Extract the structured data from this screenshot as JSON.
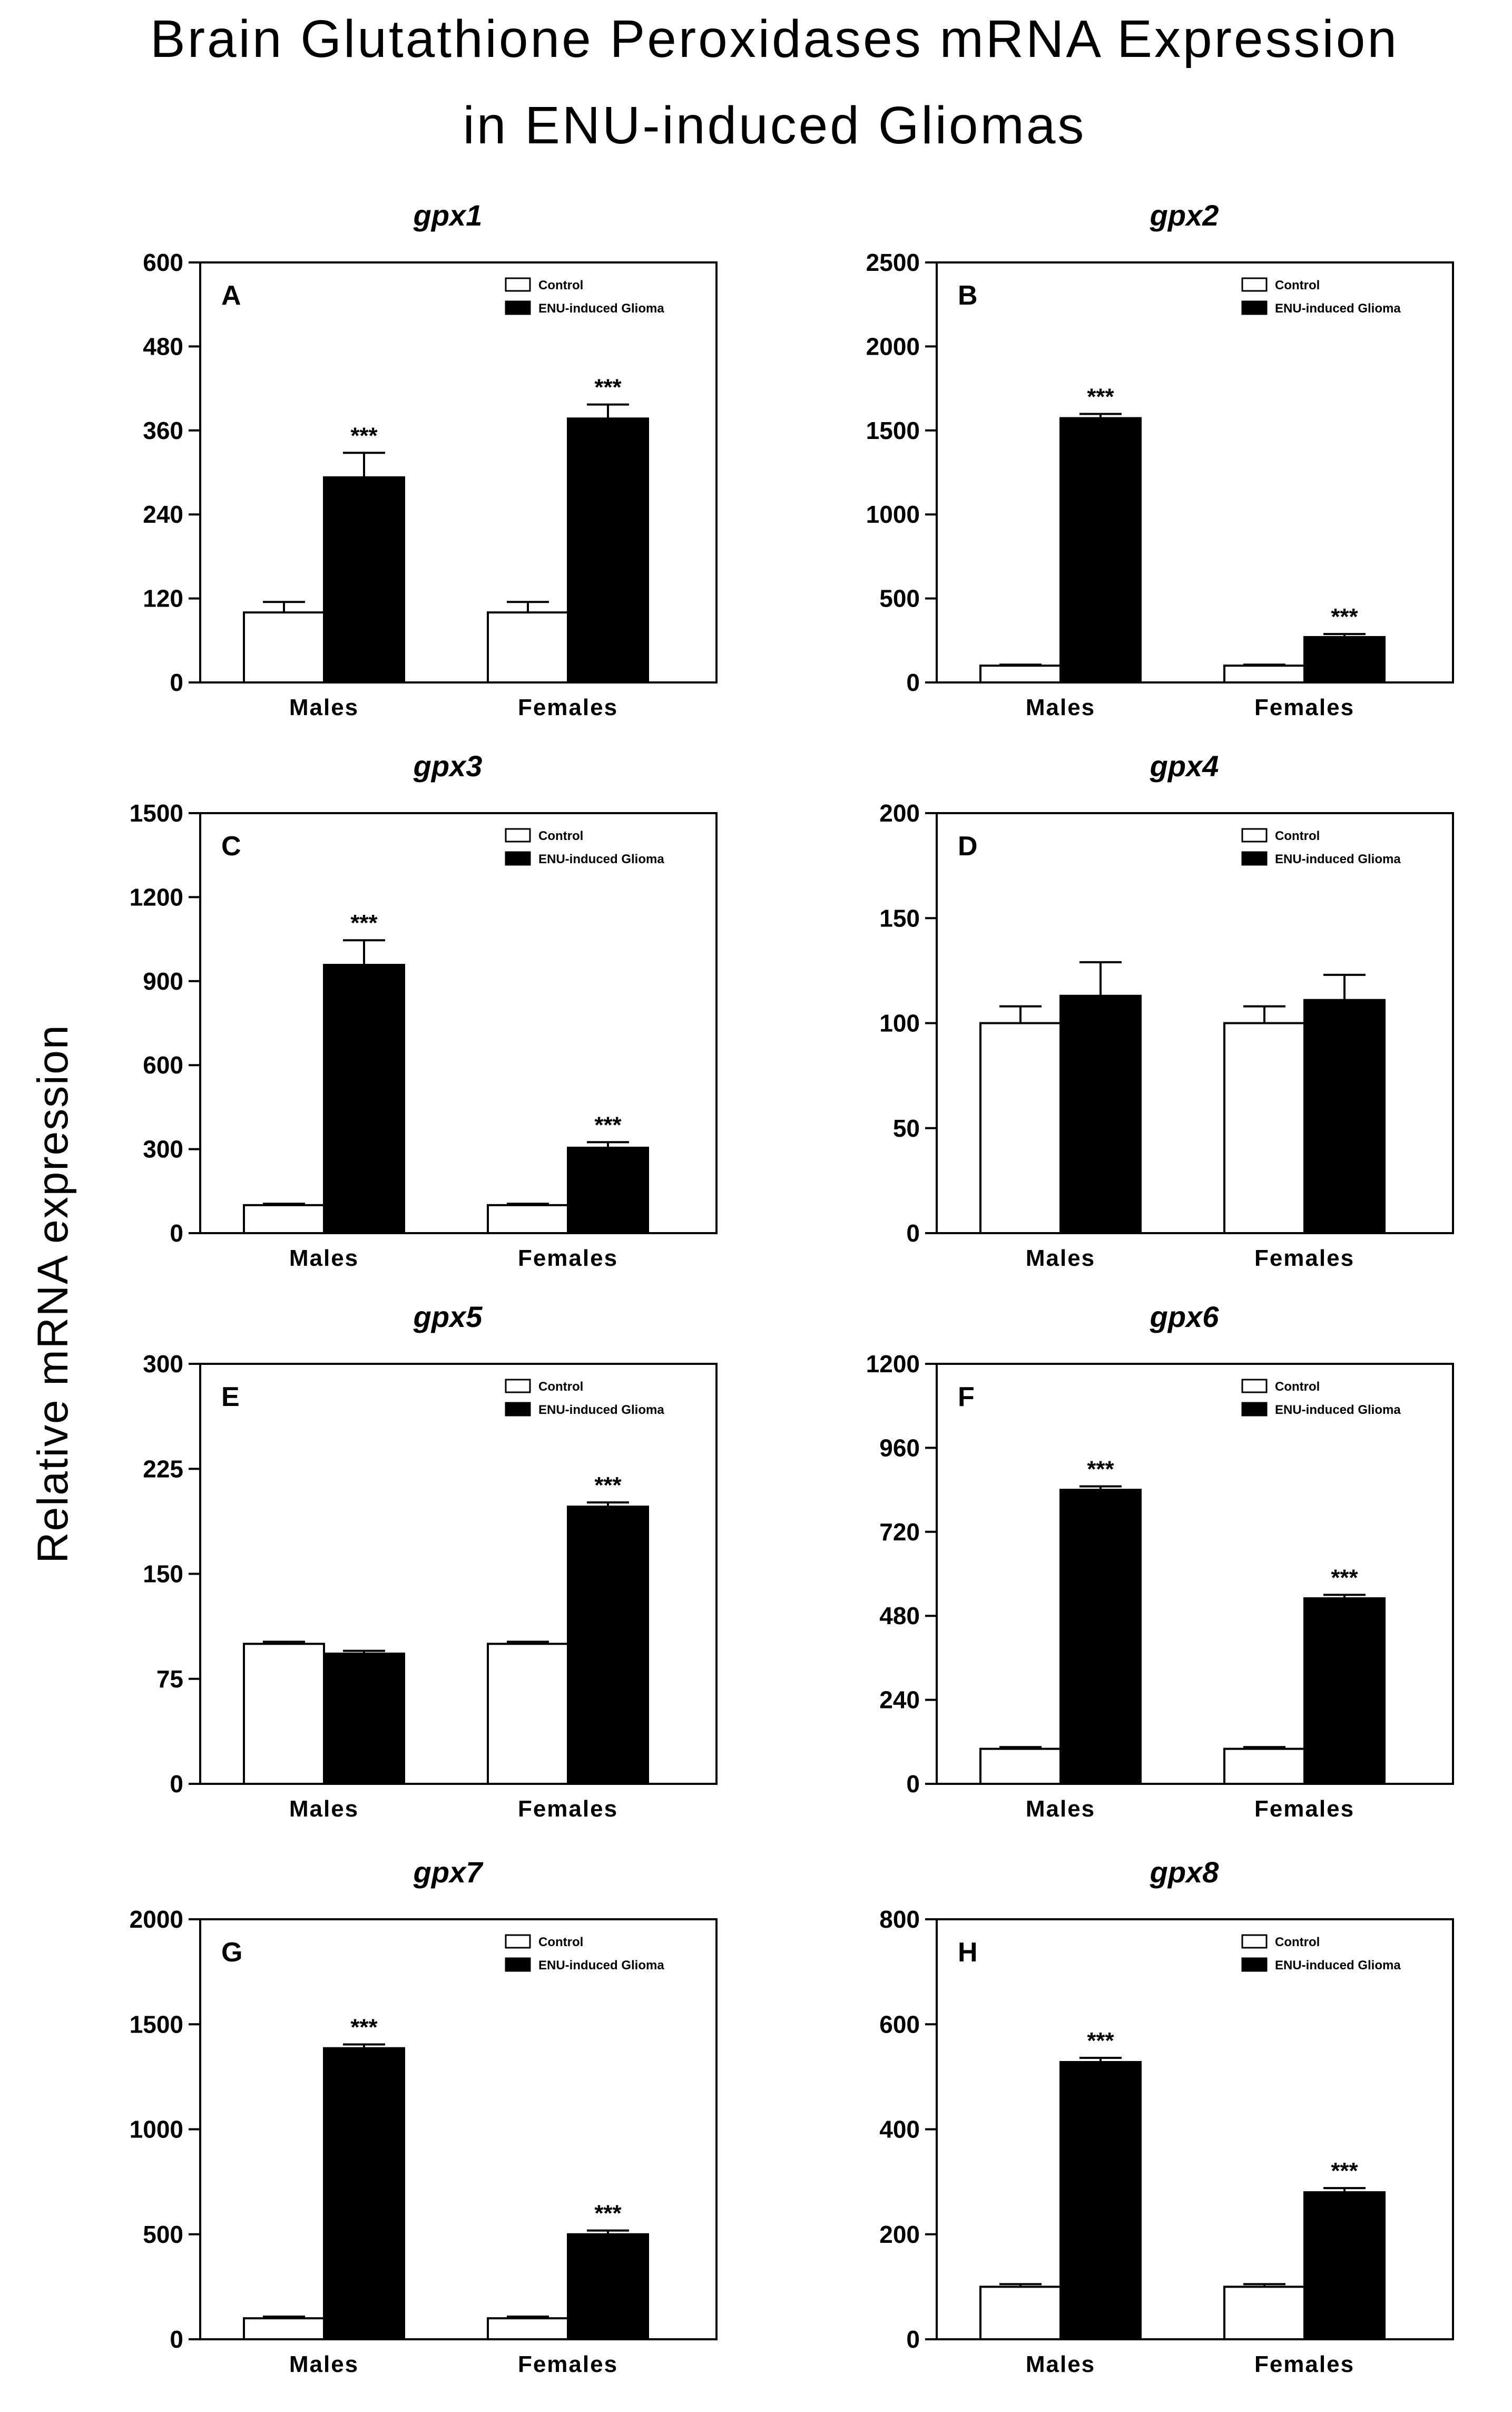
{
  "figure": {
    "title_line1": "Brain Glutathione Peroxidases mRNA Expression",
    "title_line2": "in ENU-induced Gliomas",
    "ylabel": "Relative mRNA expression"
  },
  "chart_data": [
    {
      "type": "bar",
      "panel": "A",
      "title": "gpx1",
      "categories": [
        "Males",
        "Females"
      ],
      "series": [
        {
          "name": "Control",
          "values": [
            100,
            100
          ],
          "errors": [
            15,
            15
          ]
        },
        {
          "name": "ENU-induced Glioma",
          "values": [
            293,
            377
          ],
          "errors": [
            35,
            20
          ]
        }
      ],
      "significance": [
        [
          "",
          ""
        ],
        [
          "***",
          "***"
        ]
      ],
      "ylim": [
        0,
        600
      ],
      "yticks": [
        0,
        120,
        240,
        360,
        480,
        600
      ],
      "ytick_labels": [
        "0",
        "120",
        "240",
        "360",
        "480",
        "600"
      ],
      "legend": "top-right"
    },
    {
      "type": "bar",
      "panel": "B",
      "title": "gpx2",
      "categories": [
        "Males",
        "Females"
      ],
      "series": [
        {
          "name": "Control",
          "values": [
            100,
            100
          ],
          "errors": [
            6,
            6
          ]
        },
        {
          "name": "ENU-induced Glioma",
          "values": [
            1573,
            270
          ],
          "errors": [
            25,
            18
          ]
        }
      ],
      "significance": [
        [
          "",
          ""
        ],
        [
          "***",
          "***"
        ]
      ],
      "ylim": [
        0,
        2500
      ],
      "yticks": [
        0,
        500,
        1000,
        1500,
        2000,
        2500
      ],
      "ytick_labels": [
        "0",
        "500",
        "1000",
        "1500",
        "2000",
        "2500"
      ],
      "legend": "top-right"
    },
    {
      "type": "bar",
      "panel": "C",
      "title": "gpx3",
      "categories": [
        "Males",
        "Females"
      ],
      "series": [
        {
          "name": "Control",
          "values": [
            100,
            100
          ],
          "errors": [
            5,
            5
          ]
        },
        {
          "name": "ENU-induced Glioma",
          "values": [
            958,
            305
          ],
          "errors": [
            88,
            20
          ]
        }
      ],
      "significance": [
        [
          "",
          ""
        ],
        [
          "***",
          "***"
        ]
      ],
      "ylim": [
        0,
        1500
      ],
      "yticks": [
        0,
        300,
        600,
        900,
        1200,
        1500
      ],
      "ytick_labels": [
        "0",
        "300",
        "600",
        "900",
        "1200",
        "1500"
      ],
      "legend": "top-right"
    },
    {
      "type": "bar",
      "panel": "D",
      "title": "gpx4",
      "categories": [
        "Males",
        "Females"
      ],
      "series": [
        {
          "name": "Control",
          "values": [
            100,
            100
          ],
          "errors": [
            8,
            8
          ]
        },
        {
          "name": "ENU-induced Glioma",
          "values": [
            113,
            111
          ],
          "errors": [
            16,
            12
          ]
        }
      ],
      "significance": [
        [
          "",
          ""
        ],
        [
          "",
          ""
        ]
      ],
      "ylim": [
        0,
        200
      ],
      "yticks": [
        0,
        50,
        100,
        150,
        200
      ],
      "ytick_labels": [
        "0",
        "50",
        "100",
        "150",
        "200"
      ],
      "legend": "top-right"
    },
    {
      "type": "bar",
      "panel": "E",
      "title": "gpx5",
      "categories": [
        "Males",
        "Females"
      ],
      "series": [
        {
          "name": "Control",
          "values": [
            100,
            100
          ],
          "errors": [
            1.5,
            1.5
          ]
        },
        {
          "name": "ENU-induced Glioma",
          "values": [
            93,
            198
          ],
          "errors": [
            2,
            3
          ]
        }
      ],
      "significance": [
        [
          "",
          ""
        ],
        [
          "",
          "***"
        ]
      ],
      "ylim": [
        0,
        300
      ],
      "yticks": [
        0,
        75,
        150,
        225,
        300
      ],
      "ytick_labels": [
        "0",
        "75",
        "150",
        "225",
        "300"
      ],
      "legend": "top-right"
    },
    {
      "type": "bar",
      "panel": "F",
      "title": "gpx6",
      "categories": [
        "Males",
        "Females"
      ],
      "series": [
        {
          "name": "Control",
          "values": [
            100,
            100
          ],
          "errors": [
            5,
            5
          ]
        },
        {
          "name": "ENU-induced Glioma",
          "values": [
            840,
            530
          ],
          "errors": [
            10,
            10
          ]
        }
      ],
      "significance": [
        [
          "",
          ""
        ],
        [
          "***",
          "***"
        ]
      ],
      "ylim": [
        0,
        1200
      ],
      "yticks": [
        0,
        240,
        480,
        720,
        960,
        1200
      ],
      "ytick_labels": [
        "0",
        "240",
        "480",
        "720",
        "960",
        "1200"
      ],
      "legend": "top-right"
    },
    {
      "type": "bar",
      "panel": "G",
      "title": "gpx7",
      "categories": [
        "Males",
        "Females"
      ],
      "series": [
        {
          "name": "Control",
          "values": [
            100,
            100
          ],
          "errors": [
            8,
            8
          ]
        },
        {
          "name": "ENU-induced Glioma",
          "values": [
            1386,
            500
          ],
          "errors": [
            18,
            18
          ]
        }
      ],
      "significance": [
        [
          "",
          ""
        ],
        [
          "***",
          "***"
        ]
      ],
      "ylim": [
        0,
        2000
      ],
      "yticks": [
        0,
        500,
        1000,
        1500,
        2000
      ],
      "ytick_labels": [
        "0",
        "500",
        "1000",
        "1500",
        "2000"
      ],
      "legend": "top-right"
    },
    {
      "type": "bar",
      "panel": "H",
      "title": "gpx8",
      "categories": [
        "Males",
        "Females"
      ],
      "series": [
        {
          "name": "Control",
          "values": [
            100,
            100
          ],
          "errors": [
            5,
            5
          ]
        },
        {
          "name": "ENU-induced Glioma",
          "values": [
            528,
            280
          ],
          "errors": [
            8,
            8
          ]
        }
      ],
      "significance": [
        [
          "",
          ""
        ],
        [
          "***",
          "***"
        ]
      ],
      "ylim": [
        0,
        800
      ],
      "yticks": [
        0,
        200,
        400,
        600,
        800
      ],
      "ytick_labels": [
        "0",
        "200",
        "400",
        "600",
        "800"
      ],
      "legend": "top-right"
    }
  ]
}
